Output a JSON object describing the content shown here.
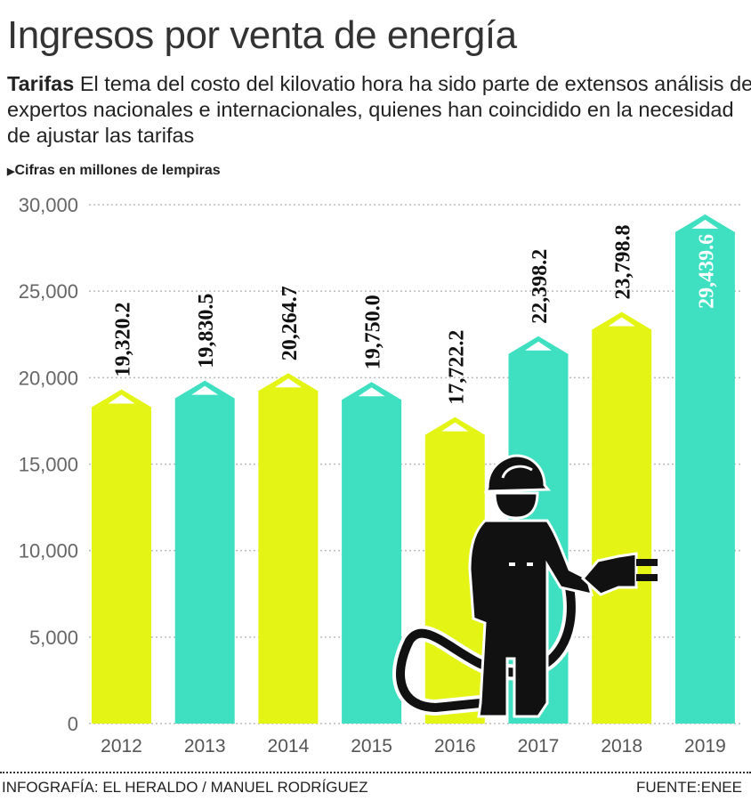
{
  "header": {
    "title": "Ingresos por venta de energía",
    "intro_lead": "Tarifas",
    "intro_text": " El tema del costo del kilovatio hora ha sido parte de extensos análisis de expertos nacionales e internacionales, quienes han coincidido en la necesidad de ajustar las tarifas",
    "units_note": "Cifras en millones de lempiras"
  },
  "footer": {
    "credit": "INFOGRAFÍA: EL HERALDO / MANUEL RODRÍGUEZ",
    "source": "FUENTE:ENEE"
  },
  "colors": {
    "yellow": "#e4f515",
    "teal": "#3ee0c1",
    "grid": "#bbbbbb"
  },
  "chart_data": {
    "type": "bar",
    "title": "Ingresos por venta de energía",
    "ylabel": "Cifras en millones de lempiras",
    "xlabel": "",
    "ylim": [
      0,
      30000
    ],
    "yticks": [
      0,
      5000,
      10000,
      15000,
      20000,
      25000,
      30000
    ],
    "ytick_labels": [
      "0",
      "5,000",
      "10,000",
      "15,000",
      "20,000",
      "25,000",
      "30,000"
    ],
    "grid": true,
    "categories": [
      "2012",
      "2013",
      "2014",
      "2015",
      "2016",
      "2017",
      "2018",
      "2019"
    ],
    "values": [
      19320.2,
      19830.5,
      20264.7,
      19750.0,
      17722.2,
      22398.2,
      23798.8,
      29439.6
    ],
    "value_labels": [
      "19,320.2",
      "19,830.5",
      "20,264.7",
      "19,750.0",
      "17,722.2",
      "22,398.2",
      "23,798.8",
      "29,439.6"
    ],
    "bar_colors": [
      "yellow",
      "teal",
      "yellow",
      "teal",
      "yellow",
      "teal",
      "yellow",
      "teal"
    ]
  }
}
